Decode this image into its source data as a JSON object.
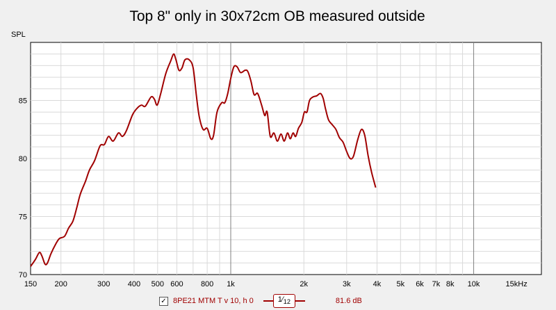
{
  "chart_data": {
    "type": "line",
    "title": "Top 8\" only in 30x72cm OB measured outside",
    "ylabel": "SPL",
    "xscale": "log",
    "xlim": [
      150,
      19000
    ],
    "ylim": [
      70,
      90
    ],
    "yticks": [
      {
        "value": 70,
        "label": "70"
      },
      {
        "value": 75,
        "label": "75"
      },
      {
        "value": 80,
        "label": "80"
      },
      {
        "value": 85,
        "label": "85"
      }
    ],
    "xticks": [
      {
        "value": 150,
        "label": "150"
      },
      {
        "value": 200,
        "label": "200"
      },
      {
        "value": 300,
        "label": "300"
      },
      {
        "value": 400,
        "label": "400"
      },
      {
        "value": 500,
        "label": "500"
      },
      {
        "value": 600,
        "label": "600"
      },
      {
        "value": 800,
        "label": "800"
      },
      {
        "value": 1000,
        "label": "1k"
      },
      {
        "value": 2000,
        "label": "2k"
      },
      {
        "value": 3000,
        "label": "3k"
      },
      {
        "value": 4000,
        "label": "4k"
      },
      {
        "value": 5000,
        "label": "5k"
      },
      {
        "value": 6000,
        "label": "6k"
      },
      {
        "value": 7000,
        "label": "7k"
      },
      {
        "value": 8000,
        "label": "8k"
      },
      {
        "value": 10000,
        "label": "10k"
      },
      {
        "value": 15000,
        "label": "15kHz"
      }
    ],
    "major_gridlines": [
      1000,
      10000
    ],
    "grid": true,
    "legend_position": "bottom",
    "series": [
      {
        "name": "8PE21 MTM T v 10, h 0",
        "color": "#a00000",
        "points": [
          [
            150,
            70.7
          ],
          [
            157,
            71.3
          ],
          [
            163,
            71.9
          ],
          [
            167,
            71.6
          ],
          [
            172,
            70.9
          ],
          [
            176,
            71.0
          ],
          [
            182,
            71.8
          ],
          [
            190,
            72.6
          ],
          [
            197,
            73.1
          ],
          [
            207,
            73.3
          ],
          [
            215,
            74.0
          ],
          [
            224,
            74.6
          ],
          [
            232,
            75.7
          ],
          [
            240,
            76.9
          ],
          [
            252,
            78.0
          ],
          [
            262,
            79.0
          ],
          [
            275,
            79.8
          ],
          [
            290,
            81.1
          ],
          [
            302,
            81.2
          ],
          [
            314,
            81.9
          ],
          [
            328,
            81.5
          ],
          [
            345,
            82.2
          ],
          [
            358,
            81.9
          ],
          [
            372,
            82.4
          ],
          [
            395,
            83.8
          ],
          [
            415,
            84.4
          ],
          [
            430,
            84.6
          ],
          [
            445,
            84.5
          ],
          [
            470,
            85.3
          ],
          [
            485,
            85.1
          ],
          [
            498,
            84.6
          ],
          [
            515,
            85.6
          ],
          [
            540,
            87.3
          ],
          [
            566,
            88.4
          ],
          [
            582,
            89.0
          ],
          [
            595,
            88.5
          ],
          [
            612,
            87.6
          ],
          [
            630,
            87.8
          ],
          [
            648,
            88.5
          ],
          [
            675,
            88.5
          ],
          [
            700,
            87.8
          ],
          [
            722,
            85.4
          ],
          [
            742,
            83.6
          ],
          [
            770,
            82.5
          ],
          [
            800,
            82.6
          ],
          [
            828,
            81.7
          ],
          [
            850,
            82.0
          ],
          [
            878,
            84.0
          ],
          [
            918,
            84.8
          ],
          [
            945,
            84.8
          ],
          [
            972,
            85.6
          ],
          [
            1000,
            86.9
          ],
          [
            1030,
            87.9
          ],
          [
            1062,
            87.9
          ],
          [
            1098,
            87.4
          ],
          [
            1145,
            87.6
          ],
          [
            1175,
            87.5
          ],
          [
            1210,
            86.7
          ],
          [
            1248,
            85.5
          ],
          [
            1290,
            85.6
          ],
          [
            1340,
            84.6
          ],
          [
            1380,
            83.7
          ],
          [
            1412,
            84.0
          ],
          [
            1455,
            81.9
          ],
          [
            1505,
            82.2
          ],
          [
            1556,
            81.5
          ],
          [
            1610,
            82.1
          ],
          [
            1660,
            81.5
          ],
          [
            1712,
            82.2
          ],
          [
            1758,
            81.7
          ],
          [
            1805,
            82.2
          ],
          [
            1850,
            81.9
          ],
          [
            1900,
            82.6
          ],
          [
            1960,
            83.1
          ],
          [
            2010,
            84.0
          ],
          [
            2060,
            84.0
          ],
          [
            2110,
            85.0
          ],
          [
            2180,
            85.3
          ],
          [
            2260,
            85.4
          ],
          [
            2340,
            85.6
          ],
          [
            2400,
            85.2
          ],
          [
            2460,
            84.2
          ],
          [
            2530,
            83.3
          ],
          [
            2620,
            82.9
          ],
          [
            2710,
            82.5
          ],
          [
            2800,
            81.8
          ],
          [
            2900,
            81.4
          ],
          [
            3000,
            80.6
          ],
          [
            3100,
            80.0
          ],
          [
            3200,
            80.2
          ],
          [
            3330,
            81.6
          ],
          [
            3450,
            82.5
          ],
          [
            3560,
            82.0
          ],
          [
            3680,
            80.2
          ],
          [
            3800,
            78.8
          ],
          [
            3950,
            77.5
          ]
        ]
      }
    ]
  },
  "legend": {
    "checkbox_mark": "✓",
    "series_name": "8PE21 MTM T v 10, h 0",
    "smoothing_num": "1",
    "smoothing_sep": "⁄",
    "smoothing_den": "12",
    "level_readout": "81.6 dB"
  }
}
